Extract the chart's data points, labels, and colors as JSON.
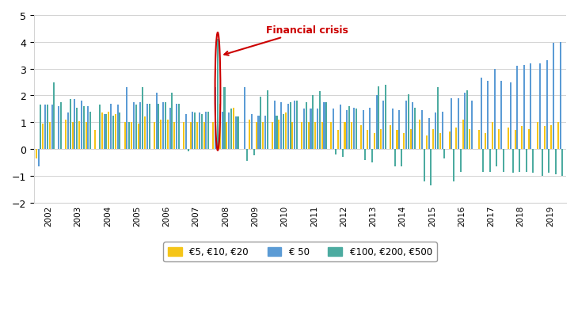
{
  "title": "",
  "ylabel": "",
  "ylim": [
    -2,
    5
  ],
  "yticks": [
    -2,
    -1,
    0,
    1,
    2,
    3,
    4,
    5
  ],
  "years": [
    2002,
    2003,
    2004,
    2005,
    2006,
    2007,
    2008,
    2009,
    2010,
    2011,
    2012,
    2013,
    2014,
    2015,
    2016,
    2017,
    2018,
    2019
  ],
  "quarters": 4,
  "color_yellow": "#F5C518",
  "color_blue": "#5B9BD5",
  "color_green": "#4CABA0",
  "annotation_text": "Financial crisis",
  "annotation_color": "#CC0000",
  "legend_labels": [
    "€5, €10, €20",
    "€ 50",
    "€100, €200, €500"
  ],
  "yellow_data": [
    -0.35,
    0.95,
    1.0,
    0.0,
    1.1,
    1.0,
    1.05,
    1.0,
    0.7,
    1.35,
    1.4,
    1.3,
    1.0,
    1.0,
    0.95,
    1.2,
    1.0,
    1.1,
    1.1,
    1.0,
    1.0,
    1.0,
    1.0,
    1.0,
    1.0,
    1.7,
    1.0,
    1.55,
    0.0,
    1.1,
    1.0,
    1.0,
    1.0,
    1.1,
    1.35,
    1.0,
    1.0,
    1.0,
    1.0,
    1.0,
    1.0,
    0.7,
    1.0,
    1.0,
    0.9,
    0.7,
    0.6,
    0.75,
    0.9,
    0.7,
    0.6,
    0.75,
    1.1,
    0.5,
    0.75,
    0.6,
    0.65,
    0.8,
    1.1,
    0.75,
    0.7,
    0.6,
    1.0,
    0.75,
    0.8,
    0.7,
    0.85,
    0.75,
    1.0,
    0.85,
    0.9,
    1.0
  ],
  "blue_data": [
    -0.65,
    1.65,
    1.65,
    1.6,
    1.35,
    1.85,
    1.8,
    1.6,
    0.0,
    1.3,
    1.7,
    1.65,
    2.3,
    1.75,
    1.75,
    1.7,
    2.1,
    1.75,
    1.55,
    1.7,
    1.3,
    1.4,
    1.35,
    1.4,
    2.3,
    1.4,
    1.35,
    1.2,
    2.3,
    1.3,
    1.25,
    1.25,
    1.8,
    1.75,
    1.7,
    1.8,
    1.5,
    1.5,
    1.5,
    1.75,
    1.5,
    1.65,
    1.45,
    1.55,
    1.45,
    1.55,
    2.0,
    1.8,
    1.5,
    1.45,
    1.8,
    1.75,
    1.45,
    1.15,
    1.35,
    1.4,
    1.9,
    1.9,
    2.1,
    1.8,
    2.65,
    2.55,
    3.0,
    2.55,
    2.5,
    3.1,
    3.15,
    3.2,
    3.2,
    3.3,
    3.95,
    4.0
  ],
  "green_data": [
    1.65,
    1.65,
    2.5,
    1.75,
    1.85,
    1.55,
    1.6,
    1.4,
    1.65,
    1.3,
    1.25,
    1.35,
    1.0,
    1.65,
    2.3,
    1.7,
    1.7,
    1.75,
    2.1,
    1.7,
    -0.1,
    1.35,
    1.3,
    1.4,
    4.1,
    2.3,
    1.5,
    1.2,
    -0.45,
    -0.25,
    1.95,
    2.2,
    1.25,
    1.3,
    1.75,
    1.8,
    1.75,
    2.0,
    2.15,
    1.75,
    -0.2,
    -0.3,
    1.6,
    1.5,
    -0.4,
    -0.5,
    2.35,
    2.4,
    -0.65,
    -0.65,
    2.05,
    1.55,
    -1.2,
    -1.35,
    2.3,
    -0.35,
    -1.2,
    -0.85,
    2.2,
    0.0,
    -0.85,
    -0.85,
    -0.65,
    -0.85,
    -0.9,
    -0.85,
    -0.85,
    -0.9,
    -1.0,
    -0.9,
    -0.95,
    -1.0
  ],
  "crisis_year_idx": 6,
  "crisis_quarter_idx": 0
}
